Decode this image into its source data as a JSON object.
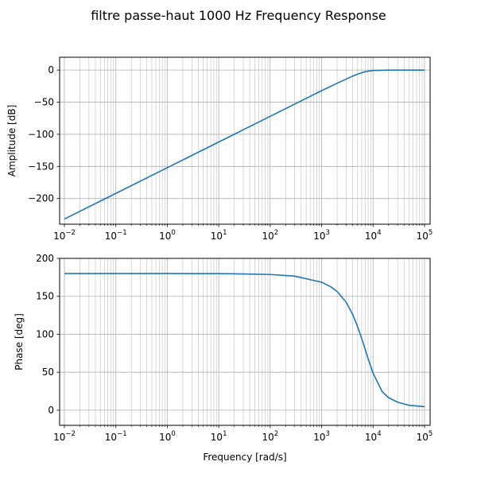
{
  "figure": {
    "title": "filtre passe-haut 1000 Hz Frequency Response"
  },
  "chart_data": [
    {
      "type": "line",
      "panel": "magnitude",
      "title": "",
      "xlabel": "",
      "ylabel": "Amplitude [dB]",
      "xscale": "log",
      "xlim": [
        0.01,
        100000
      ],
      "ylim": [
        -240,
        20
      ],
      "xticks": [
        0.01,
        0.1,
        1,
        10,
        100,
        1000,
        10000,
        100000
      ],
      "xtick_labels": [
        {
          "base": "10",
          "exp": "−2"
        },
        {
          "base": "10",
          "exp": "−1"
        },
        {
          "base": "10",
          "exp": "0"
        },
        {
          "base": "10",
          "exp": "1"
        },
        {
          "base": "10",
          "exp": "2"
        },
        {
          "base": "10",
          "exp": "3"
        },
        {
          "base": "10",
          "exp": "4"
        },
        {
          "base": "10",
          "exp": "5"
        }
      ],
      "yticks": [
        0,
        -50,
        -100,
        -150,
        -200
      ],
      "ytick_labels": [
        "0",
        "−50",
        "−100",
        "−150",
        "−200"
      ],
      "grid": true,
      "series": [
        {
          "color": "#1f77b4",
          "x": [
            0.01,
            0.1,
            1,
            10,
            100,
            1000,
            2000,
            3000,
            4000,
            5000,
            6000,
            7000,
            8000,
            10000,
            20000,
            100000
          ],
          "y": [
            -232,
            -192,
            -152,
            -112,
            -72,
            -32,
            -20.5,
            -14,
            -9.5,
            -6.3,
            -4.1,
            -2.7,
            -1.7,
            -0.7,
            0,
            0
          ]
        }
      ]
    },
    {
      "type": "line",
      "panel": "phase",
      "title": "",
      "xlabel": "Frequency [rad/s]",
      "ylabel": "Phase [deg]",
      "xscale": "log",
      "xlim": [
        0.01,
        100000
      ],
      "ylim": [
        -20,
        200
      ],
      "xticks": [
        0.01,
        0.1,
        1,
        10,
        100,
        1000,
        10000,
        100000
      ],
      "xtick_labels": [
        {
          "base": "10",
          "exp": "−2"
        },
        {
          "base": "10",
          "exp": "−1"
        },
        {
          "base": "10",
          "exp": "0"
        },
        {
          "base": "10",
          "exp": "1"
        },
        {
          "base": "10",
          "exp": "2"
        },
        {
          "base": "10",
          "exp": "3"
        },
        {
          "base": "10",
          "exp": "4"
        },
        {
          "base": "10",
          "exp": "5"
        }
      ],
      "yticks": [
        0,
        50,
        100,
        150,
        200
      ],
      "ytick_labels": [
        "0",
        "50",
        "100",
        "150",
        "200"
      ],
      "grid": true,
      "series": [
        {
          "color": "#1f77b4",
          "x": [
            0.01,
            1,
            10,
            30,
            100,
            300,
            1000,
            1500,
            2000,
            3000,
            4000,
            5000,
            6000,
            7000,
            8000,
            10000,
            15000,
            20000,
            30000,
            50000,
            100000
          ],
          "y": [
            180,
            180,
            179.9,
            179.5,
            178.8,
            176.6,
            168.6,
            162.6,
            156.4,
            142.1,
            126.3,
            110.0,
            94.4,
            80.3,
            68.0,
            48.7,
            24.5,
            16.4,
            10.5,
            6.4,
            4.6
          ]
        }
      ]
    }
  ]
}
